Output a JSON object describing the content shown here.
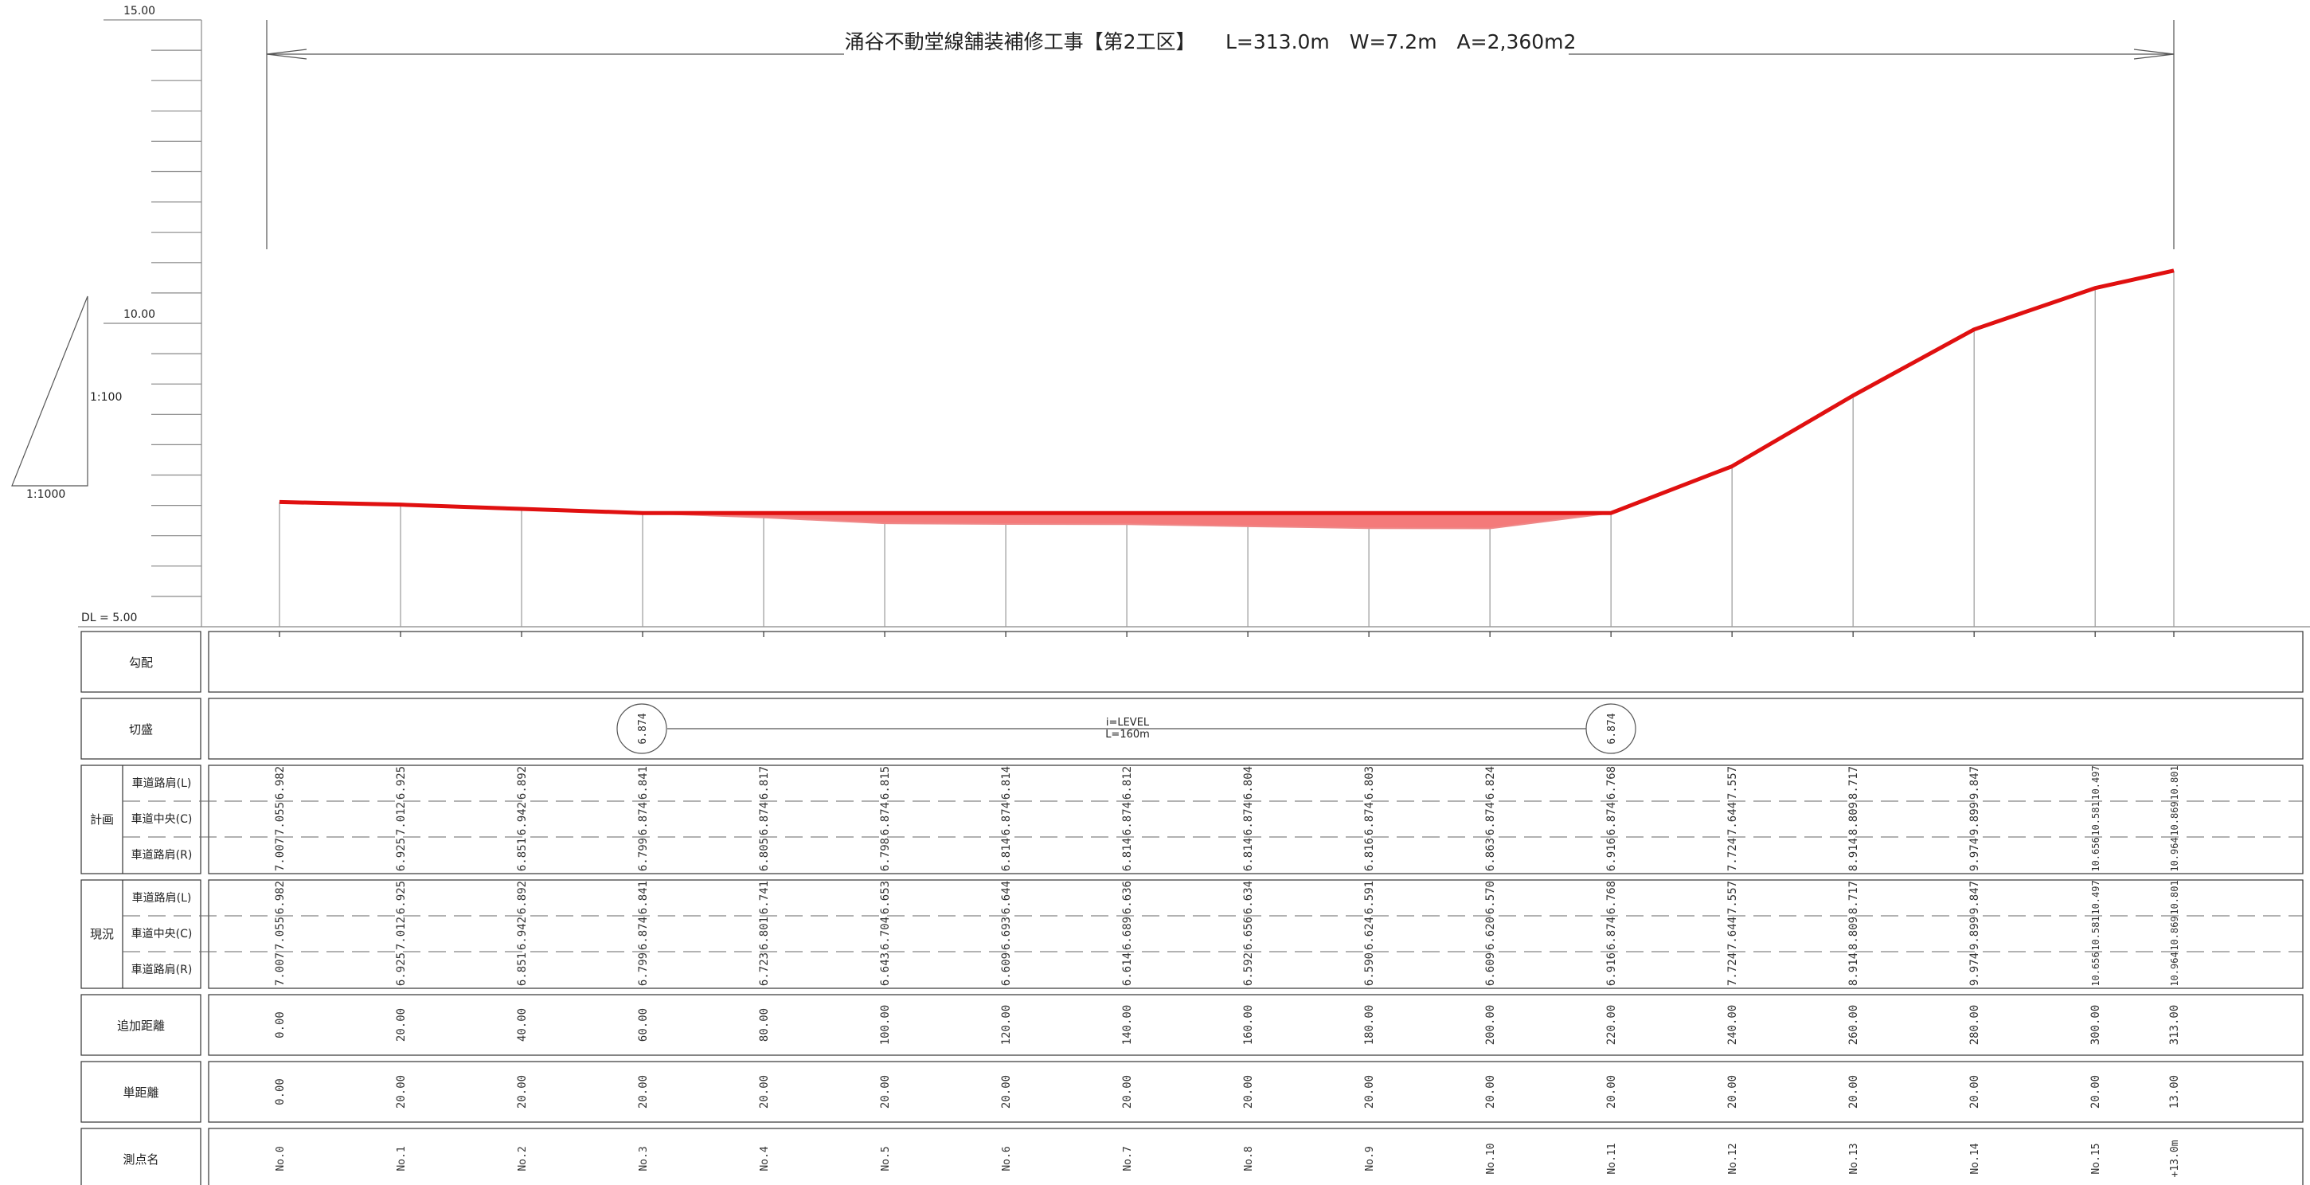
{
  "title": "涌谷不動堂線舗装補修工事【第2工区】　　L=313.0m　W=7.2m　A=2,360m2",
  "scale": {
    "v_top": "15.00",
    "v_mid": "10.00",
    "datum": "DL = 5.00",
    "ratio_v": "1:100",
    "ratio_h": "1:1000"
  },
  "rows": {
    "gradient": "勾配",
    "cutfill": "切盛",
    "plan": "計画",
    "existing": "現況",
    "lane_l": "車道路肩(L)",
    "lane_c": "車道中央(C)",
    "lane_r": "車道路肩(R)",
    "cum_dist": "追加距離",
    "single_dist": "単距離",
    "station": "測点名"
  },
  "grade": {
    "label1": "i=LEVEL",
    "label2": "L=160m",
    "left_value": "6.874",
    "right_value": "6.874"
  },
  "chart_data": {
    "type": "line",
    "x": [
      0,
      20,
      40,
      60,
      80,
      100,
      120,
      140,
      160,
      180,
      200,
      220,
      240,
      260,
      280,
      300,
      313
    ],
    "ylim": [
      5,
      15
    ],
    "series": [
      {
        "name": "計画",
        "values": [
          7.055,
          7.012,
          6.942,
          6.874,
          6.874,
          6.874,
          6.874,
          6.874,
          6.874,
          6.874,
          6.874,
          6.874,
          7.644,
          8.809,
          9.899,
          10.581,
          10.869
        ]
      },
      {
        "name": "現況",
        "values": [
          7.055,
          7.012,
          6.942,
          6.874,
          6.801,
          6.704,
          6.693,
          6.689,
          6.656,
          6.624,
          6.62,
          6.874,
          7.644,
          8.809,
          9.899,
          10.581,
          10.869
        ]
      }
    ],
    "stations": [
      "No.0",
      "No.1",
      "No.2",
      "No.3",
      "No.4",
      "No.5",
      "No.6",
      "No.7",
      "No.8",
      "No.9",
      "No.10",
      "No.11",
      "No.12",
      "No.13",
      "No.14",
      "No.15",
      "+13.0m"
    ],
    "cum_dist": [
      "0.00",
      "20.00",
      "40.00",
      "60.00",
      "80.00",
      "100.00",
      "120.00",
      "140.00",
      "160.00",
      "180.00",
      "200.00",
      "220.00",
      "240.00",
      "260.00",
      "280.00",
      "300.00",
      "313.00"
    ],
    "single_dist": [
      "0.00",
      "20.00",
      "20.00",
      "20.00",
      "20.00",
      "20.00",
      "20.00",
      "20.00",
      "20.00",
      "20.00",
      "20.00",
      "20.00",
      "20.00",
      "20.00",
      "20.00",
      "20.00",
      "13.00"
    ],
    "plan": {
      "L": [
        "6.982",
        "6.925",
        "6.892",
        "6.841",
        "6.817",
        "6.815",
        "6.814",
        "6.812",
        "6.804",
        "6.803",
        "6.824",
        "6.768",
        "7.557",
        "8.717",
        "9.847",
        "10.497",
        "10.801"
      ],
      "C": [
        "7.055",
        "7.012",
        "6.942",
        "6.874",
        "6.874",
        "6.874",
        "6.874",
        "6.874",
        "6.874",
        "6.874",
        "6.874",
        "6.874",
        "7.644",
        "8.809",
        "9.899",
        "10.581",
        "10.869"
      ],
      "R": [
        "7.007",
        "6.925",
        "6.851",
        "6.799",
        "6.805",
        "6.798",
        "6.814",
        "6.814",
        "6.814",
        "6.816",
        "6.863",
        "6.916",
        "7.724",
        "8.914",
        "9.974",
        "10.656",
        "10.964"
      ]
    },
    "existing": {
      "L": [
        "6.982",
        "6.925",
        "6.892",
        "6.841",
        "6.741",
        "6.653",
        "6.644",
        "6.636",
        "6.634",
        "6.591",
        "6.570",
        "6.768",
        "7.557",
        "8.717",
        "9.847",
        "10.497",
        "10.801"
      ],
      "C": [
        "7.055",
        "7.012",
        "6.942",
        "6.874",
        "6.801",
        "6.704",
        "6.693",
        "6.689",
        "6.656",
        "6.624",
        "6.620",
        "6.874",
        "7.644",
        "8.809",
        "9.899",
        "10.581",
        "10.869"
      ],
      "R": [
        "7.007",
        "6.925",
        "6.851",
        "6.799",
        "6.723",
        "6.643",
        "6.609",
        "6.614",
        "6.592",
        "6.590",
        "6.609",
        "6.916",
        "7.724",
        "8.914",
        "9.974",
        "10.656",
        "10.964"
      ]
    }
  }
}
